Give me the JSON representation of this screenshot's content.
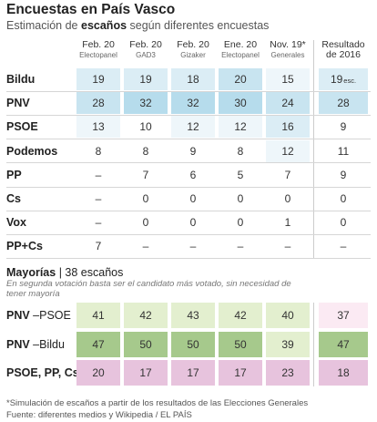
{
  "header": {
    "title": "Encuestas en País Vasco",
    "subtitle_pre": "Estimación de",
    "subtitle_bold": "escaños",
    "subtitle_post": "según diferentes encuestas"
  },
  "columns": [
    {
      "date": "Feb. 20",
      "source": "Electopanel"
    },
    {
      "date": "Feb. 20",
      "source": "GAD3"
    },
    {
      "date": "Feb. 20",
      "source": "Gizaker"
    },
    {
      "date": "Ene. 20",
      "source": "Electopanel"
    },
    {
      "date": "Nov. 19*",
      "source": "Generales"
    }
  ],
  "result_header": {
    "line1": "Resultado",
    "line2": "de 2016"
  },
  "rows": [
    {
      "party": "Bildu",
      "values": [
        "19",
        "19",
        "18",
        "20",
        "15"
      ],
      "result": "19",
      "result_note": "esc."
    },
    {
      "party": "PNV",
      "values": [
        "28",
        "32",
        "32",
        "30",
        "24"
      ],
      "result": "28"
    },
    {
      "party": "PSOE",
      "values": [
        "13",
        "10",
        "12",
        "12",
        "16"
      ],
      "result": "9"
    },
    {
      "party": "Podemos",
      "values": [
        "8",
        "8",
        "9",
        "8",
        "12"
      ],
      "result": "11"
    },
    {
      "party": "PP",
      "values": [
        "–",
        "7",
        "6",
        "5",
        "7"
      ],
      "result": "9"
    },
    {
      "party": "Cs",
      "values": [
        "–",
        "0",
        "0",
        "0",
        "0"
      ],
      "result": "0"
    },
    {
      "party": "Vox",
      "values": [
        "–",
        "0",
        "0",
        "0",
        "1"
      ],
      "result": "0"
    },
    {
      "party": "PP+Cs",
      "values": [
        "7",
        "–",
        "–",
        "–",
        "–"
      ],
      "result": "–"
    }
  ],
  "majorities": {
    "title_bold": "Mayorías",
    "title_rest": "| 38 escaños",
    "note": "En segunda votación basta ser el candidato más votado, sin necesidad de tener mayoría",
    "rows": [
      {
        "bold": "PNV",
        "rest": " –PSOE",
        "values": [
          "41",
          "42",
          "43",
          "42",
          "40"
        ],
        "result": "37"
      },
      {
        "bold": "PNV",
        "rest": " –Bildu",
        "values": [
          "47",
          "50",
          "50",
          "50",
          "39"
        ],
        "result": "47"
      },
      {
        "bold": "PSOE, PP, Cs",
        "rest": "",
        "values": [
          "20",
          "17",
          "17",
          "17",
          "23"
        ],
        "result": "18"
      }
    ]
  },
  "footnotes": {
    "line1": "*Simulación de escaños a partir de los resultados de las Elecciones Generales",
    "line2": "Fuente: diferentes medios y Wikipedia / EL PAÍS"
  },
  "colors": {
    "blue_scale": [
      "#ffffff",
      "#eef6fa",
      "#dbedf5",
      "#c8e4f0",
      "#b6dcec"
    ],
    "majority_light_green": "#e3efcf",
    "majority_green": "#a6c98c",
    "majority_pink": "#e7c3dd",
    "majority_light_pink": "#fbeaf3",
    "no_data": "#ffffff"
  },
  "chart_data": {
    "type": "table",
    "title": "Encuestas en País Vasco",
    "subtitle": "Estimación de escaños según diferentes encuestas",
    "columns": [
      "Feb. 20 Electopanel",
      "Feb. 20 GAD3",
      "Feb. 20 Gizaker",
      "Ene. 20 Electopanel",
      "Nov. 19* Generales",
      "Resultado de 2016"
    ],
    "rows": {
      "Bildu": [
        19,
        19,
        18,
        20,
        15,
        19
      ],
      "PNV": [
        28,
        32,
        32,
        30,
        24,
        28
      ],
      "PSOE": [
        13,
        10,
        12,
        12,
        16,
        9
      ],
      "Podemos": [
        8,
        8,
        9,
        8,
        12,
        11
      ],
      "PP": [
        null,
        7,
        6,
        5,
        7,
        9
      ],
      "Cs": [
        null,
        0,
        0,
        0,
        0,
        0
      ],
      "Vox": [
        null,
        0,
        0,
        0,
        1,
        0
      ],
      "PP+Cs": [
        7,
        null,
        null,
        null,
        null,
        null
      ]
    },
    "majorities_threshold": 38,
    "majorities": {
      "PNV–PSOE": [
        41,
        42,
        43,
        42,
        40,
        37
      ],
      "PNV–Bildu": [
        47,
        50,
        50,
        50,
        39,
        47
      ],
      "PSOE, PP, Cs": [
        20,
        17,
        17,
        17,
        23,
        18
      ]
    }
  }
}
